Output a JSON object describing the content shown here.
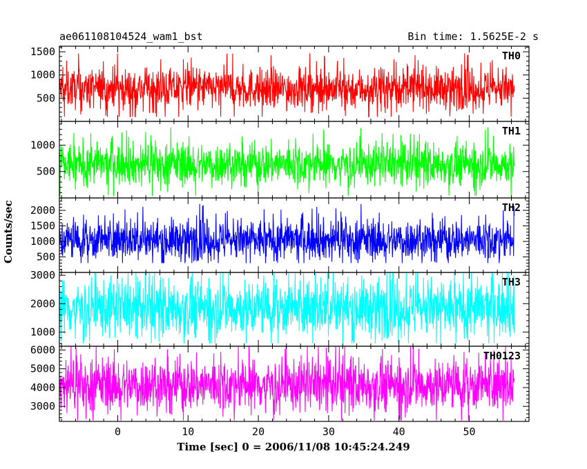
{
  "header": {
    "title": "ae061108104524_wam1_bst",
    "bin_time": "Bin time: 1.5625E-2 s"
  },
  "chart_data": {
    "type": "line",
    "title": "ae061108104524_wam1_bst",
    "subtitle": "Bin time: 1.5625E-2 s",
    "xlabel": "Time [sec] 0 = 2006/11/08 10:45:24.249",
    "ylabel": "Counts/sec",
    "x_range": [
      -8.3,
      56.4
    ],
    "xlim": [
      -8.3,
      58.5
    ],
    "x_ticks": [
      0,
      10,
      20,
      30,
      40,
      50
    ],
    "x_tick_labels": [
      "0",
      "10",
      "20",
      "30",
      "40",
      "50"
    ],
    "series": [
      {
        "name": "TH0",
        "color": "#ff0000",
        "ylim": [
          0,
          1620
        ],
        "y_ticks": [
          500,
          1000,
          1500
        ],
        "y_tick_labels": [
          "500",
          "1000",
          "1500"
        ],
        "mean": 710,
        "spread": 380,
        "min": 100,
        "max": 1620
      },
      {
        "name": "TH1",
        "color": "#00ff00",
        "ylim": [
          0,
          1450
        ],
        "y_ticks": [
          500,
          1000
        ],
        "y_tick_labels": [
          "500",
          "1000"
        ],
        "mean": 640,
        "spread": 350,
        "min": 40,
        "max": 1450
      },
      {
        "name": "TH2",
        "color": "#0000ff",
        "ylim": [
          0,
          2400
        ],
        "y_ticks": [
          500,
          1000,
          1500,
          2000
        ],
        "y_tick_labels": [
          "500",
          "1000",
          "1500",
          "2000"
        ],
        "mean": 1050,
        "spread": 580,
        "min": 300,
        "max": 2400
      },
      {
        "name": "TH3",
        "color": "#00ffff",
        "ylim": [
          500,
          3100
        ],
        "y_ticks": [
          1000,
          2000,
          3000
        ],
        "y_tick_labels": [
          "1000",
          "2000",
          "3000"
        ],
        "mean": 1850,
        "spread": 900,
        "min": 600,
        "max": 3100
      },
      {
        "name": "TH0123",
        "color": "#ff00ff",
        "ylim": [
          2200,
          6200
        ],
        "y_ticks": [
          3000,
          4000,
          5000,
          6000
        ],
        "y_tick_labels": [
          "3000",
          "4000",
          "5000",
          "6000"
        ],
        "mean": 4150,
        "spread": 1250,
        "min": 2250,
        "max": 6200
      }
    ]
  }
}
